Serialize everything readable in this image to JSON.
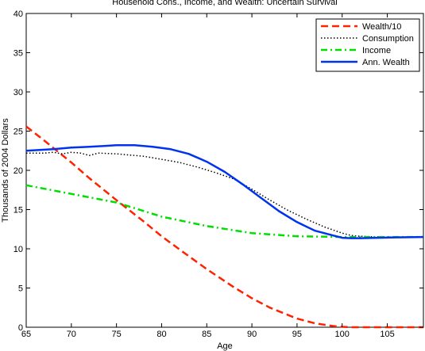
{
  "chart_data": {
    "type": "line",
    "title": "Household Cons., Income, and Wealth: Uncertain Survival",
    "xlabel": "Age",
    "ylabel": "Thousands of 2004 Dollars",
    "xlim": [
      65,
      109
    ],
    "ylim": [
      0,
      40
    ],
    "xticks": [
      65,
      70,
      75,
      80,
      85,
      90,
      95,
      100,
      105
    ],
    "yticks": [
      0,
      5,
      10,
      15,
      20,
      25,
      30,
      35,
      40
    ],
    "grid": false,
    "legend_position": "top-right",
    "series": [
      {
        "name": "Wealth/10",
        "color": "#ff2200",
        "style": "dashed",
        "x": [
          65,
          67,
          70,
          72,
          75,
          78,
          80,
          82,
          85,
          88,
          90,
          92,
          95,
          97,
          99,
          100,
          101,
          103,
          105,
          109
        ],
        "y": [
          25.6,
          23.8,
          21.0,
          19.0,
          16.2,
          13.5,
          11.6,
          9.9,
          7.4,
          5.1,
          3.7,
          2.5,
          1.1,
          0.5,
          0.15,
          0.05,
          0.0,
          0.0,
          0.0,
          0.0
        ]
      },
      {
        "name": "Consumption",
        "color": "#000000",
        "style": "dotted",
        "x": [
          65,
          67,
          68,
          69,
          70,
          71,
          72,
          73,
          75,
          78,
          80,
          82,
          84,
          86,
          88,
          90,
          92,
          94,
          96,
          98,
          100,
          101,
          102,
          104,
          106,
          109
        ],
        "y": [
          22.2,
          22.2,
          22.3,
          22.1,
          22.3,
          22.2,
          21.9,
          22.2,
          22.1,
          21.8,
          21.4,
          21.0,
          20.4,
          19.7,
          18.9,
          17.6,
          16.2,
          14.9,
          13.8,
          12.8,
          12.0,
          11.7,
          11.6,
          11.5,
          11.5,
          11.5
        ]
      },
      {
        "name": "Income",
        "color": "#00dd00",
        "style": "dashdot",
        "x": [
          65,
          70,
          75,
          80,
          85,
          90,
          95,
          100,
          105,
          109
        ],
        "y": [
          18.1,
          17.0,
          15.9,
          14.1,
          12.9,
          12.0,
          11.6,
          11.5,
          11.5,
          11.5
        ]
      },
      {
        "name": "Ann. Wealth",
        "color": "#0033ee",
        "style": "solid",
        "x": [
          65,
          68,
          70,
          72,
          75,
          77,
          79,
          81,
          83,
          85,
          87,
          89,
          91,
          93,
          95,
          97,
          99,
          100,
          101,
          102,
          104,
          106,
          109
        ],
        "y": [
          22.5,
          22.7,
          22.9,
          23.0,
          23.2,
          23.2,
          23.0,
          22.7,
          22.1,
          21.1,
          19.8,
          18.2,
          16.5,
          14.8,
          13.4,
          12.3,
          11.7,
          11.4,
          11.35,
          11.35,
          11.4,
          11.45,
          11.5
        ]
      }
    ]
  }
}
